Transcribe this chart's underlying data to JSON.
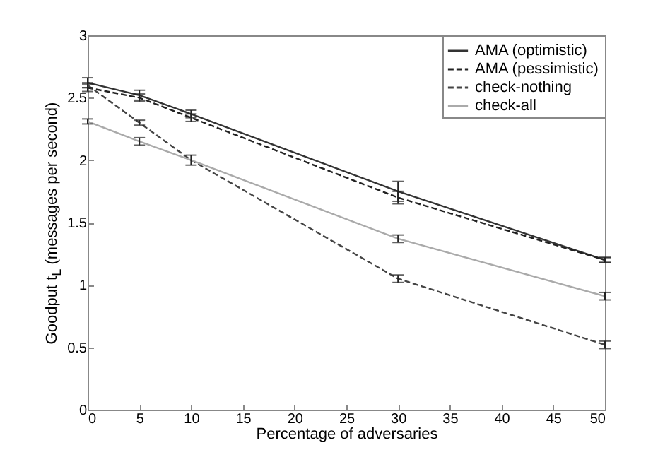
{
  "chart_data": {
    "type": "line",
    "xlabel": "Percentage of adversaries",
    "ylabel": "Goodput t$_{L}$ (messages per second)",
    "x": [
      0,
      5,
      10,
      30,
      50
    ],
    "xlim": [
      0,
      50
    ],
    "xticks": [
      0,
      5,
      10,
      15,
      20,
      25,
      30,
      35,
      40,
      45,
      50
    ],
    "ylim": [
      0,
      3
    ],
    "yticks": [
      0,
      0.5,
      1,
      1.5,
      2,
      2.5,
      3
    ],
    "grid": false,
    "legend": "top right",
    "marker": "none",
    "series": [
      {
        "name": "AMA (optimistic)",
        "color": "#333333",
        "line_style": "solid",
        "values": [
          2.62,
          2.52,
          2.37,
          1.75,
          1.2
        ],
        "errors": [
          0.04,
          0.04,
          0.03,
          0.08,
          0.02
        ]
      },
      {
        "name": "AMA (pessimistic)",
        "color": "#222222",
        "line_style": "dashed",
        "values": [
          2.58,
          2.5,
          2.34,
          1.7,
          1.2
        ],
        "errors": [
          0.03,
          0.03,
          0.03,
          0.05,
          0.02
        ]
      },
      {
        "name": "check-nothing",
        "color": "#444444",
        "line_style": "dashed",
        "values": [
          2.6,
          2.3,
          2.0,
          1.05,
          0.52
        ],
        "errors": [
          0.02,
          0.02,
          0.04,
          0.03,
          0.03
        ]
      },
      {
        "name": "check-all",
        "color": "#aaaaaa",
        "line_style": "solid",
        "values": [
          2.31,
          2.15,
          2.0,
          1.37,
          0.91
        ],
        "errors": [
          0.02,
          0.03,
          null,
          0.03,
          0.03
        ]
      }
    ]
  }
}
